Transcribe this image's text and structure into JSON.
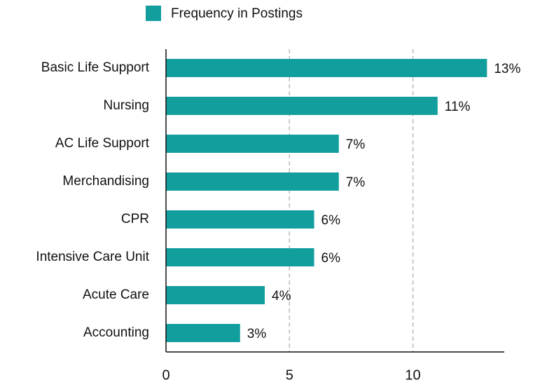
{
  "chart_data": {
    "type": "bar",
    "orientation": "horizontal",
    "categories": [
      "Basic Life Support",
      "Nursing",
      "AC Life Support",
      "Merchandising",
      "CPR",
      "Intensive Care Unit",
      "Acute Care",
      "Accounting"
    ],
    "series": [
      {
        "name": "Frequency in Postings",
        "color": "#139e9e",
        "values": [
          13,
          11,
          7,
          7,
          6,
          6,
          4,
          3
        ],
        "value_labels": [
          "13%",
          "11%",
          "7%",
          "7%",
          "6%",
          "6%",
          "4%",
          "3%"
        ]
      }
    ],
    "xlim": [
      0,
      13.7
    ],
    "xticks": [
      0,
      5,
      10
    ],
    "grid": true,
    "legend": "top"
  }
}
